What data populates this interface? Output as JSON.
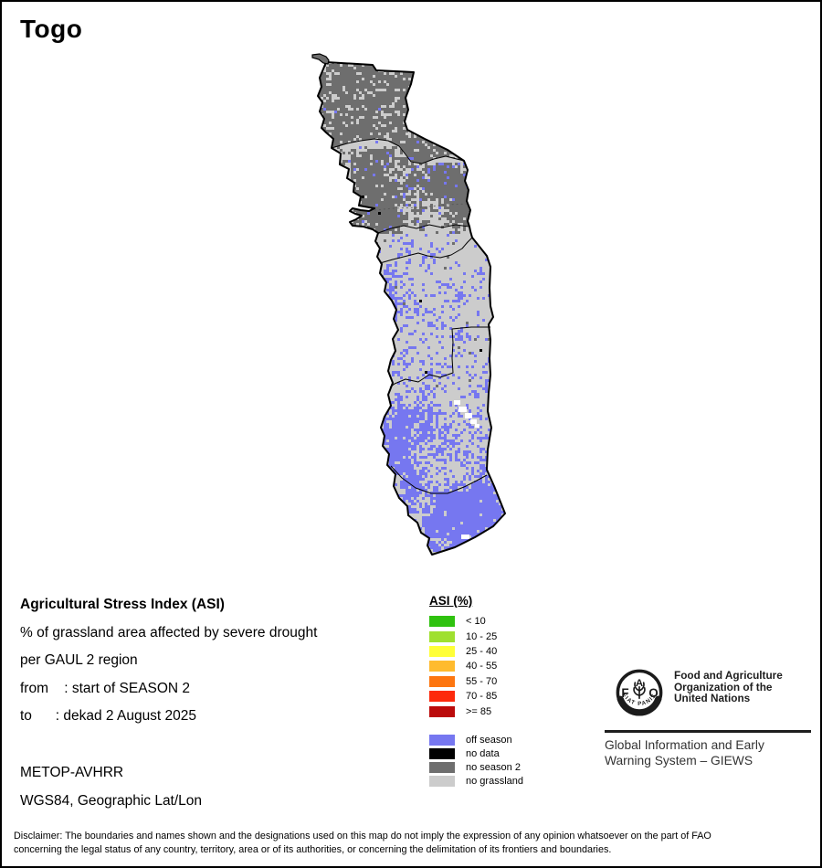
{
  "page": {
    "title": "Togo"
  },
  "map": {
    "country": "Togo",
    "boundary_color": "#000000",
    "water_patch_color": "#ffffff"
  },
  "info_block": {
    "heading": "Agricultural Stress Index (ASI)",
    "subtitle": "% of grassland area affected by severe drought",
    "region_line": "per GAUL 2 region",
    "from_line": "from    : start of SEASON 2",
    "to_line": "to      : dekad 2 August 2025"
  },
  "source_block": {
    "sensor": "METOP-AVHRR",
    "projection": "WGS84, Geographic Lat/Lon"
  },
  "legend": {
    "title": "ASI (%)",
    "asi_classes": [
      {
        "label": "< 10",
        "color": "#2fc20f"
      },
      {
        "label": "10 - 25",
        "color": "#9fe02f"
      },
      {
        "label": "25 - 40",
        "color": "#ffff38"
      },
      {
        "label": "40 - 55",
        "color": "#ffbb2e"
      },
      {
        "label": "55 - 70",
        "color": "#fd7610"
      },
      {
        "label": "70 - 85",
        "color": "#fd2a0c"
      },
      {
        "label": ">= 85",
        "color": "#bb0b0b"
      }
    ],
    "other_classes": [
      {
        "label": "off season",
        "color": "#7677f0"
      },
      {
        "label": "no data",
        "color": "#000000"
      },
      {
        "label": "no season 2",
        "color": "#6e6e6e"
      },
      {
        "label": "no grassland",
        "color": "#cccccc"
      }
    ]
  },
  "footer": {
    "fao_circle_text": "FIAT PANIS",
    "fao_letters": [
      "F",
      "A",
      "O"
    ],
    "org_name_lines": [
      "Food and Agriculture",
      "Organization of the",
      "United Nations"
    ],
    "giews_lines": [
      "Global Information and Early",
      "Warning System – GIEWS"
    ],
    "disclaimer_lines": [
      "Disclaimer: The boundaries and names shown and the designations used on this map do not imply the expression of any opinion whatsoever on the part of FAO",
      "concerning the legal status of any country, territory, area or of its authorities, or concerning the delimitation of its frontiers and boundaries."
    ]
  }
}
